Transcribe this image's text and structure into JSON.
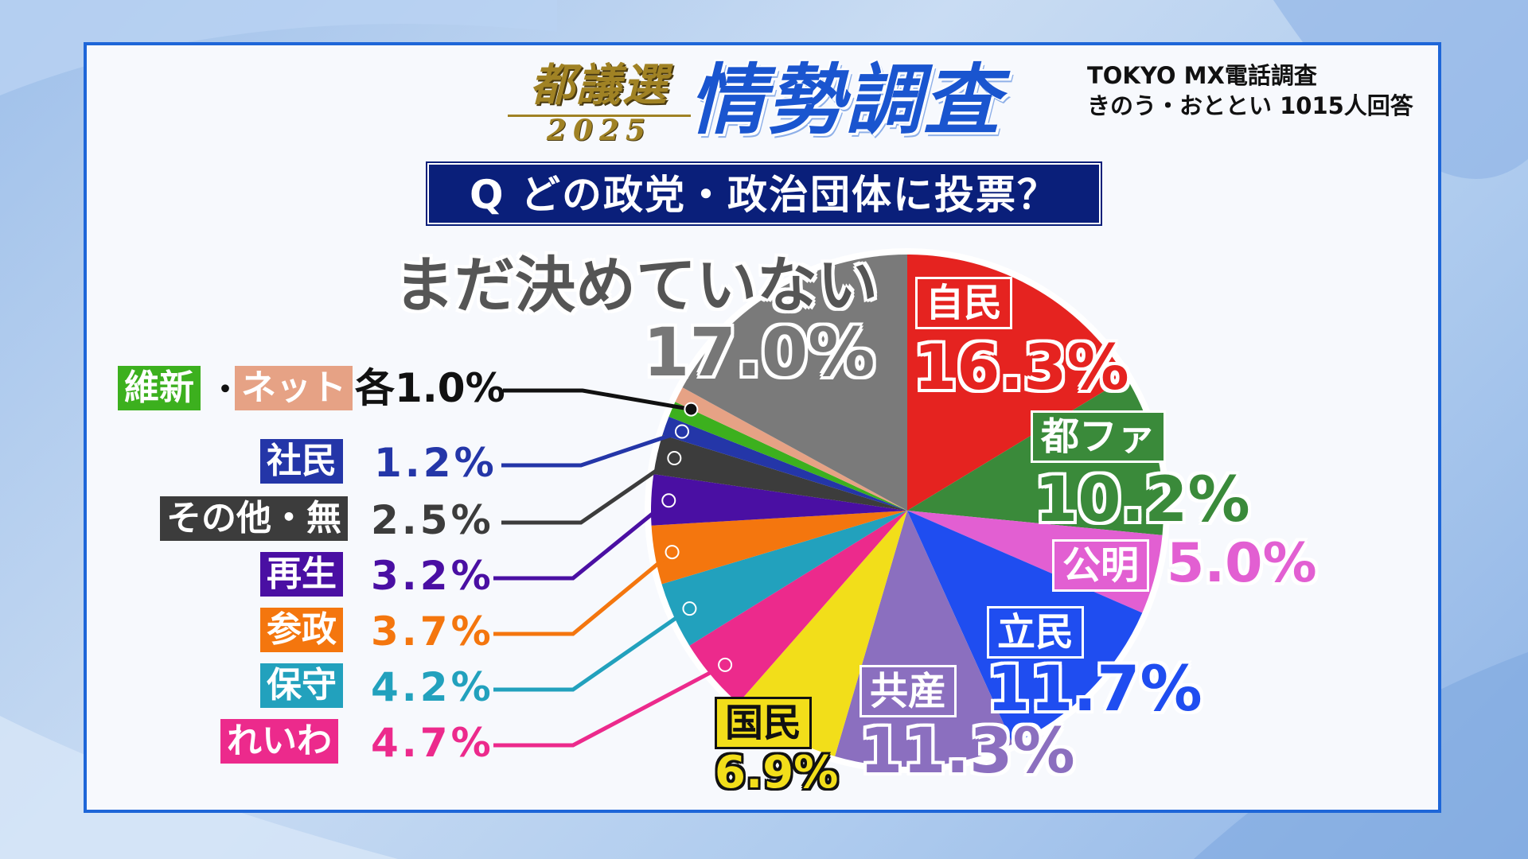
{
  "logo": {
    "kanji": "都議選",
    "year": "2025"
  },
  "title": "情勢調査",
  "source": {
    "line1": "TOKYO MX電話調査",
    "line2": "きのう・おととい 1015人回答"
  },
  "question": "Q どの政党・政治団体に投票？",
  "chart_data": {
    "type": "pie",
    "title": "",
    "slices": [
      {
        "label": "自民",
        "value": 16.3,
        "display": "16.3%",
        "color": "#e52320"
      },
      {
        "label": "都ファ",
        "value": 10.2,
        "display": "10.2%",
        "color": "#3a8a3a"
      },
      {
        "label": "公明",
        "value": 5.0,
        "display": "5.0%",
        "color": "#e25fd2"
      },
      {
        "label": "立民",
        "value": 11.7,
        "display": "11.7%",
        "color": "#1f4df0"
      },
      {
        "label": "共産",
        "value": 11.3,
        "display": "11.3%",
        "color": "#8b6fbf"
      },
      {
        "label": "国民",
        "value": 6.9,
        "display": "6.9%",
        "color": "#f2de1a"
      },
      {
        "label": "れいわ",
        "value": 4.7,
        "display": "4.7%",
        "color": "#ec2a8c"
      },
      {
        "label": "保守",
        "value": 4.2,
        "display": "4.2%",
        "color": "#22a1bd"
      },
      {
        "label": "参政",
        "value": 3.7,
        "display": "3.7%",
        "color": "#f4760e"
      },
      {
        "label": "再生",
        "value": 3.2,
        "display": "3.2%",
        "color": "#4a0fa3"
      },
      {
        "label": "その他・無",
        "value": 2.5,
        "display": "2.5%",
        "color": "#3c3c3c"
      },
      {
        "label": "社民",
        "value": 1.2,
        "display": "1.2%",
        "color": "#2436a8"
      },
      {
        "label": "維新",
        "value": 1.0,
        "display": "1.0%",
        "color": "#3cb01e"
      },
      {
        "label": "ネット",
        "value": 1.0,
        "display": "1.0%",
        "color": "#e6a285"
      },
      {
        "label": "まだ決めていない",
        "value": 17.0,
        "display": "17.0%",
        "color": "#7a7a7a"
      }
    ]
  },
  "labels": {
    "jimin": {
      "name": "自民",
      "pct": "16.3%"
    },
    "tofa": {
      "name": "都ファ",
      "pct": "10.2%"
    },
    "komei": {
      "name": "公明",
      "pct": "5.0%"
    },
    "rikken": {
      "name": "立民",
      "pct": "11.7%"
    },
    "kyosan": {
      "name": "共産",
      "pct": "11.3%"
    },
    "kokumin": {
      "name": "国民",
      "pct": "6.9%"
    },
    "undecided": {
      "name": "まだ決めていない",
      "pct": "17.0%"
    },
    "ishin_net": {
      "ishin": "維新",
      "sep": "・",
      "net": "ネット",
      "pct": "各1.0%"
    },
    "shamin": {
      "name": "社民",
      "pct": "1.2%"
    },
    "other": {
      "name": "その他・無",
      "pct": "2.5%"
    },
    "saisei": {
      "name": "再生",
      "pct": "3.2%"
    },
    "sansei": {
      "name": "参政",
      "pct": "3.7%"
    },
    "hoshu": {
      "name": "保守",
      "pct": "4.2%"
    },
    "reiwa": {
      "name": "れいわ",
      "pct": "4.7%"
    }
  },
  "colors": {
    "panel_border": "#1e66d8",
    "title_blue": "#1a55cf",
    "question_bg": "#0a1f7a",
    "logo_gold": "#a08224"
  }
}
